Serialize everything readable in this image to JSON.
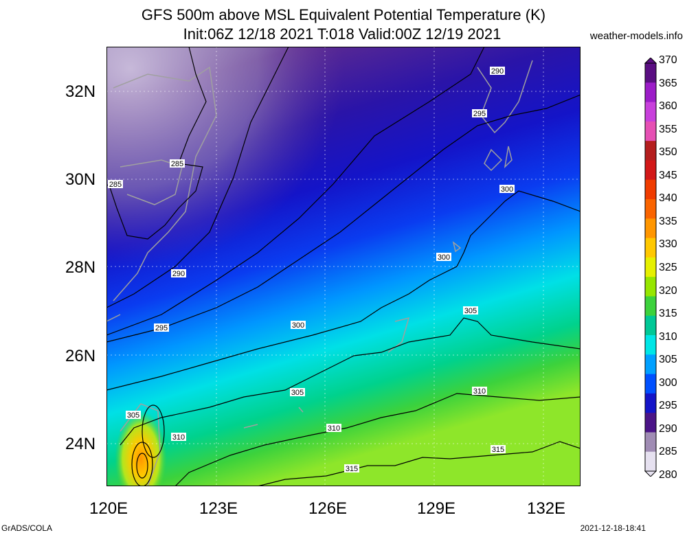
{
  "title_line1": "GFS 500m above MSL Equivalent Potential Temperature (K)",
  "title_line2": "Init:06Z 12/18 2021 T:018 Valid:00Z 12/19 2021",
  "site": "weather-models.info",
  "footer_left": "GrADS/COLA",
  "footer_right": "2021-12-18-18:41",
  "lat_labels": [
    "32N",
    "30N",
    "28N",
    "26N",
    "24N"
  ],
  "lon_labels": [
    "120E",
    "123E",
    "126E",
    "129E",
    "132E"
  ],
  "colorbar_levels": [
    "370",
    "365",
    "360",
    "355",
    "350",
    "345",
    "340",
    "335",
    "330",
    "325",
    "320",
    "315",
    "310",
    "305",
    "300",
    "295",
    "290",
    "285",
    "280"
  ],
  "colorbar_colors": [
    "#5a0e82",
    "#9c1cc8",
    "#c840dc",
    "#e650b4",
    "#b41e1e",
    "#d21818",
    "#f03c00",
    "#fa6400",
    "#ff9600",
    "#ffc800",
    "#e6f000",
    "#96e600",
    "#3cd23c",
    "#00c896",
    "#00e6e6",
    "#00a0ff",
    "#0050ff",
    "#1414c8",
    "#4b1487",
    "#a08cb4",
    "#e6e1f0"
  ],
  "contour_labels": [
    {
      "text": "285"
    },
    {
      "text": "285"
    },
    {
      "text": "290"
    },
    {
      "text": "290"
    },
    {
      "text": "295"
    },
    {
      "text": "295"
    },
    {
      "text": "300"
    },
    {
      "text": "300"
    },
    {
      "text": "300"
    },
    {
      "text": "305"
    },
    {
      "text": "305"
    },
    {
      "text": "305"
    },
    {
      "text": "310"
    },
    {
      "text": "310"
    },
    {
      "text": "310"
    },
    {
      "text": "315"
    },
    {
      "text": "315"
    }
  ]
}
